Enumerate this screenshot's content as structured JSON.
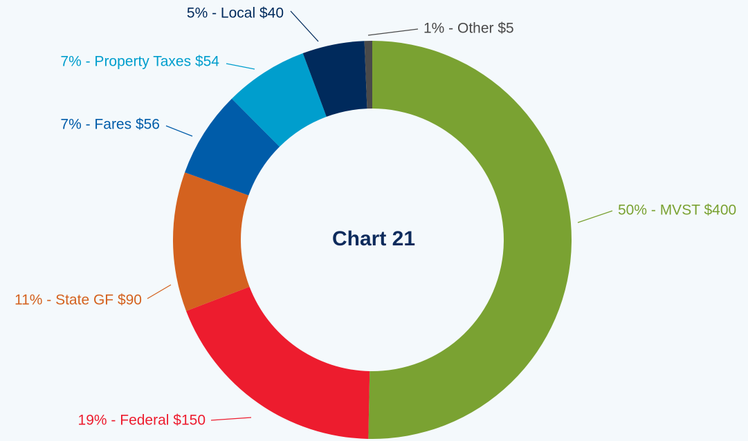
{
  "chart_data": {
    "type": "donut",
    "title": "Chart 21",
    "categories": [
      "MVST",
      "Federal",
      "State GF",
      "Fares",
      "Property Taxes",
      "Local",
      "Other"
    ],
    "values": [
      400,
      150,
      90,
      56,
      54,
      40,
      5
    ],
    "value_labels": [
      "50% - MVST $400",
      "19% - Federal $150",
      "11% - State GF $90",
      "7% - Fares $56",
      "7% - Property Taxes $54",
      "5% - Local $40",
      "1% - Other $5"
    ],
    "colors": [
      "#7aa232",
      "#ed1c2e",
      "#d4621f",
      "#005ca9",
      "#009ecd",
      "#002a5c",
      "#4a4a4a"
    ]
  }
}
